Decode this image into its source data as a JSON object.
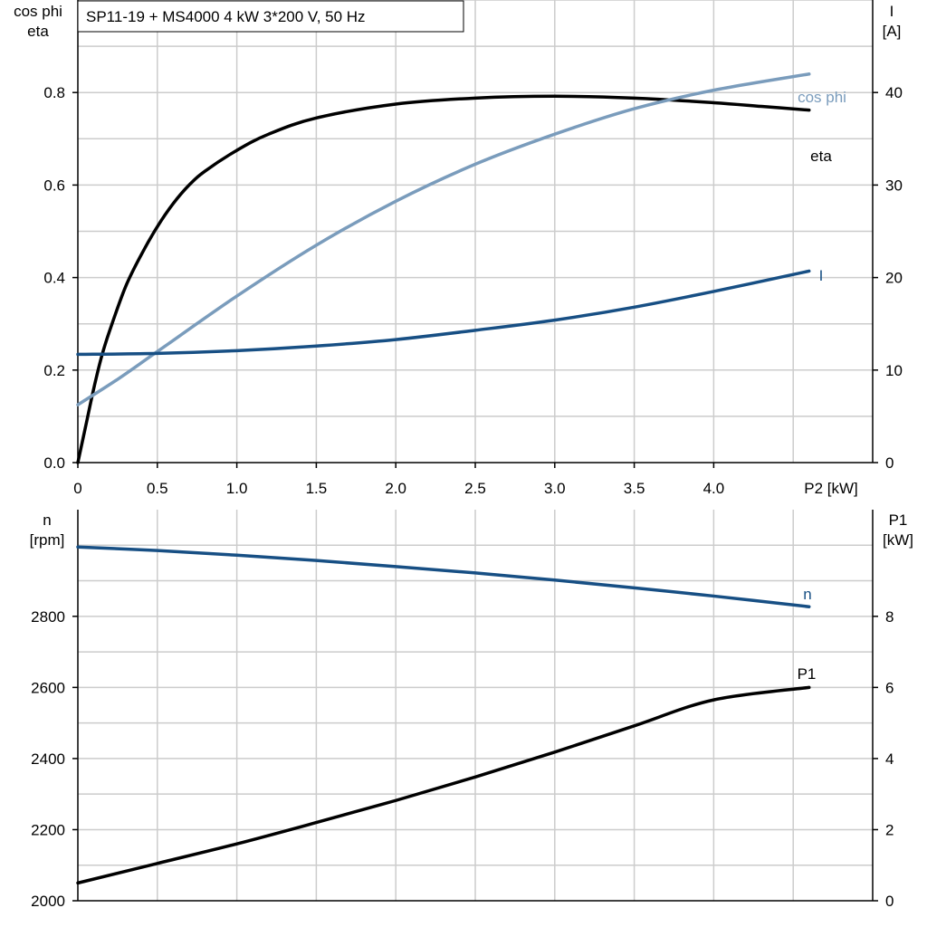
{
  "title": "SP11-19 + MS4000   4 kW   3*200 V, 50 Hz",
  "colors": {
    "eta": "#000000",
    "cos_phi": "#7a9cbc",
    "I": "#174f84",
    "n": "#174f84",
    "P1": "#000000",
    "grid": "#cccccc"
  },
  "chart_data": [
    {
      "type": "line",
      "x_label": "P2 [kW]",
      "x_ticks": [
        "0",
        "0.5",
        "1.0",
        "1.5",
        "2.0",
        "2.5",
        "3.0",
        "3.5",
        "4.0"
      ],
      "xlim": [
        0,
        5
      ],
      "left_axis_label": [
        "cos phi",
        "eta"
      ],
      "left_ticks": [
        "0.0",
        "0.2",
        "0.4",
        "0.6",
        "0.8"
      ],
      "left_lim": [
        0,
        1
      ],
      "right_axis_label": [
        "I",
        "[A]"
      ],
      "right_ticks": [
        "0",
        "10",
        "20",
        "30",
        "40"
      ],
      "right_lim": [
        0,
        50
      ],
      "grid": true,
      "series": [
        {
          "name": "eta",
          "axis": "left",
          "color": "#000000",
          "points": [
            [
              0,
              0
            ],
            [
              0.05,
              0.08
            ],
            [
              0.1,
              0.16
            ],
            [
              0.15,
              0.23
            ],
            [
              0.2,
              0.285
            ],
            [
              0.3,
              0.38
            ],
            [
              0.4,
              0.45
            ],
            [
              0.5,
              0.51
            ],
            [
              0.6,
              0.56
            ],
            [
              0.7,
              0.6
            ],
            [
              0.8,
              0.63
            ],
            [
              1.0,
              0.675
            ],
            [
              1.2,
              0.71
            ],
            [
              1.5,
              0.745
            ],
            [
              2.0,
              0.775
            ],
            [
              2.5,
              0.788
            ],
            [
              3.0,
              0.792
            ],
            [
              3.5,
              0.788
            ],
            [
              4.0,
              0.778
            ],
            [
              4.3,
              0.77
            ],
            [
              4.6,
              0.762
            ]
          ]
        },
        {
          "name": "cos phi",
          "axis": "left",
          "color": "#7a9cbc",
          "points": [
            [
              0,
              0.125
            ],
            [
              0.25,
              0.18
            ],
            [
              0.5,
              0.24
            ],
            [
              1.0,
              0.36
            ],
            [
              1.5,
              0.47
            ],
            [
              2.0,
              0.565
            ],
            [
              2.5,
              0.645
            ],
            [
              3.0,
              0.71
            ],
            [
              3.5,
              0.765
            ],
            [
              4.0,
              0.805
            ],
            [
              4.6,
              0.84
            ]
          ]
        },
        {
          "name": "I",
          "axis": "right",
          "color": "#174f84",
          "points": [
            [
              0,
              11.7
            ],
            [
              0.5,
              11.8
            ],
            [
              1.0,
              12.1
            ],
            [
              1.5,
              12.6
            ],
            [
              2.0,
              13.3
            ],
            [
              2.5,
              14.3
            ],
            [
              3.0,
              15.4
            ],
            [
              3.5,
              16.8
            ],
            [
              4.0,
              18.5
            ],
            [
              4.6,
              20.7
            ]
          ]
        }
      ]
    },
    {
      "type": "line",
      "x_label": "",
      "xlim": [
        0,
        5
      ],
      "left_axis_label": [
        "n",
        "[rpm]"
      ],
      "left_ticks": [
        "2000",
        "2200",
        "2400",
        "2600",
        "2800"
      ],
      "left_lim": [
        2000,
        3100
      ],
      "right_axis_label": [
        "P1",
        "[kW]"
      ],
      "right_ticks": [
        "0",
        "2",
        "4",
        "6",
        "8"
      ],
      "right_lim": [
        0,
        11
      ],
      "grid": true,
      "series": [
        {
          "name": "n",
          "axis": "left",
          "color": "#174f84",
          "points": [
            [
              0,
              2995
            ],
            [
              0.5,
              2985
            ],
            [
              1.0,
              2972
            ],
            [
              1.5,
              2957
            ],
            [
              2.0,
              2940
            ],
            [
              2.5,
              2922
            ],
            [
              3.0,
              2902
            ],
            [
              3.5,
              2880
            ],
            [
              4.0,
              2857
            ],
            [
              4.6,
              2827
            ]
          ]
        },
        {
          "name": "P1",
          "axis": "right",
          "color": "#000000",
          "points": [
            [
              0,
              0.5
            ],
            [
              0.5,
              1.05
            ],
            [
              1.0,
              1.6
            ],
            [
              1.5,
              2.2
            ],
            [
              2.0,
              2.82
            ],
            [
              2.5,
              3.48
            ],
            [
              3.0,
              4.18
            ],
            [
              3.5,
              4.92
            ],
            [
              4.0,
              5.65
            ],
            [
              4.6,
              6.0
            ]
          ]
        }
      ]
    }
  ]
}
